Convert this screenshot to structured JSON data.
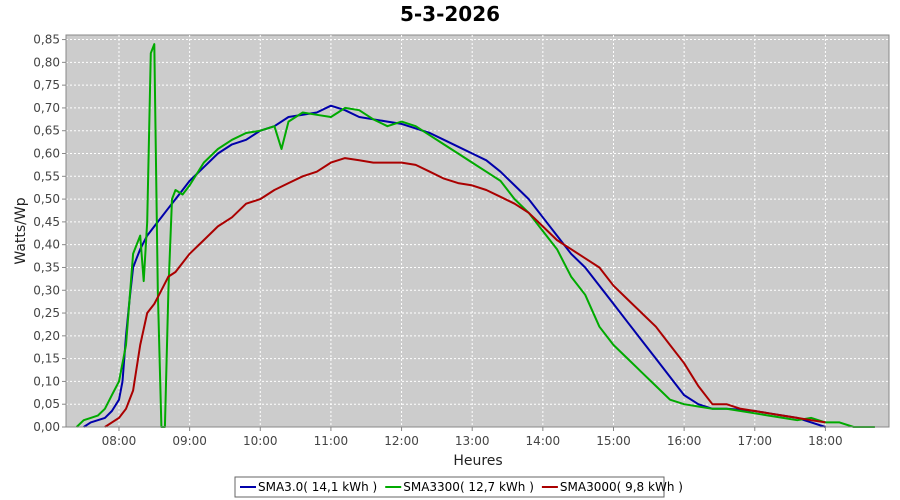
{
  "chart_data": {
    "type": "line",
    "title": "5-3-2026",
    "xlabel": "Heures",
    "ylabel": "Watts/Wp",
    "xlim": [
      7.25,
      18.9
    ],
    "ylim": [
      0,
      0.86
    ],
    "grid": true,
    "legend_position": "bottom",
    "x_ticks": [
      {
        "value": 8,
        "label": "08:00"
      },
      {
        "value": 9,
        "label": "09:00"
      },
      {
        "value": 10,
        "label": "10:00"
      },
      {
        "value": 11,
        "label": "11:00"
      },
      {
        "value": 12,
        "label": "12:00"
      },
      {
        "value": 13,
        "label": "13:00"
      },
      {
        "value": 14,
        "label": "14:00"
      },
      {
        "value": 15,
        "label": "15:00"
      },
      {
        "value": 16,
        "label": "16:00"
      },
      {
        "value": 17,
        "label": "17:00"
      },
      {
        "value": 18,
        "label": "18:00"
      }
    ],
    "y_ticks": [
      {
        "value": 0,
        "label": "0,00"
      },
      {
        "value": 0.05,
        "label": "0,05"
      },
      {
        "value": 0.1,
        "label": "0,10"
      },
      {
        "value": 0.15,
        "label": "0,15"
      },
      {
        "value": 0.2,
        "label": "0,20"
      },
      {
        "value": 0.25,
        "label": "0,25"
      },
      {
        "value": 0.3,
        "label": "0,30"
      },
      {
        "value": 0.35,
        "label": "0,35"
      },
      {
        "value": 0.4,
        "label": "0,40"
      },
      {
        "value": 0.45,
        "label": "0,45"
      },
      {
        "value": 0.5,
        "label": "0,50"
      },
      {
        "value": 0.55,
        "label": "0,55"
      },
      {
        "value": 0.6,
        "label": "0,60"
      },
      {
        "value": 0.65,
        "label": "0,65"
      },
      {
        "value": 0.7,
        "label": "0,70"
      },
      {
        "value": 0.75,
        "label": "0,75"
      },
      {
        "value": 0.8,
        "label": "0,80"
      },
      {
        "value": 0.85,
        "label": "0,85"
      }
    ],
    "series": [
      {
        "name": "SMA3.0( 14,1 kWh )",
        "color": "#0000aa",
        "x": [
          7.5,
          7.6,
          7.7,
          7.8,
          7.9,
          8.0,
          8.05,
          8.1,
          8.15,
          8.2,
          8.25,
          8.3,
          8.4,
          8.5,
          8.6,
          8.7,
          8.8,
          8.9,
          9.0,
          9.2,
          9.4,
          9.6,
          9.8,
          10.0,
          10.2,
          10.4,
          10.6,
          10.8,
          11.0,
          11.1,
          11.2,
          11.4,
          11.6,
          11.8,
          12.0,
          12.2,
          12.4,
          12.6,
          12.8,
          13.0,
          13.2,
          13.4,
          13.6,
          13.8,
          14.0,
          14.2,
          14.4,
          14.6,
          14.8,
          15.0,
          15.2,
          15.4,
          15.6,
          15.8,
          16.0,
          16.2,
          16.4,
          16.6,
          16.8,
          17.0,
          17.2,
          17.4,
          17.6,
          17.8,
          18.0
        ],
        "y": [
          0.0,
          0.01,
          0.015,
          0.02,
          0.035,
          0.06,
          0.1,
          0.2,
          0.28,
          0.35,
          0.37,
          0.39,
          0.42,
          0.44,
          0.46,
          0.48,
          0.5,
          0.52,
          0.54,
          0.57,
          0.6,
          0.62,
          0.63,
          0.65,
          0.66,
          0.68,
          0.685,
          0.69,
          0.705,
          0.7,
          0.695,
          0.68,
          0.675,
          0.67,
          0.665,
          0.655,
          0.645,
          0.63,
          0.615,
          0.6,
          0.585,
          0.56,
          0.53,
          0.5,
          0.46,
          0.42,
          0.38,
          0.35,
          0.31,
          0.27,
          0.23,
          0.19,
          0.15,
          0.11,
          0.07,
          0.05,
          0.04,
          0.04,
          0.038,
          0.035,
          0.03,
          0.025,
          0.02,
          0.01,
          0.0
        ]
      },
      {
        "name": "SMA3300( 12,7 kWh )",
        "color": "#00aa00",
        "x": [
          7.4,
          7.5,
          7.6,
          7.7,
          7.8,
          7.9,
          8.0,
          8.1,
          8.2,
          8.3,
          8.35,
          8.4,
          8.45,
          8.5,
          8.55,
          8.6,
          8.65,
          8.7,
          8.75,
          8.8,
          8.9,
          9.0,
          9.2,
          9.4,
          9.6,
          9.8,
          10.0,
          10.2,
          10.3,
          10.4,
          10.6,
          10.8,
          11.0,
          11.1,
          11.2,
          11.4,
          11.6,
          11.8,
          12.0,
          12.2,
          12.4,
          12.6,
          12.8,
          13.0,
          13.2,
          13.4,
          13.6,
          13.8,
          14.0,
          14.2,
          14.4,
          14.6,
          14.8,
          15.0,
          15.2,
          15.4,
          15.6,
          15.8,
          16.0,
          16.2,
          16.4,
          16.6,
          16.8,
          17.0,
          17.2,
          17.4,
          17.6,
          17.8,
          18.0,
          18.2,
          18.4,
          18.7
        ],
        "y": [
          0.0,
          0.015,
          0.02,
          0.025,
          0.04,
          0.07,
          0.1,
          0.18,
          0.38,
          0.42,
          0.32,
          0.45,
          0.82,
          0.84,
          0.3,
          0.0,
          0.0,
          0.3,
          0.5,
          0.52,
          0.51,
          0.53,
          0.58,
          0.61,
          0.63,
          0.645,
          0.65,
          0.66,
          0.61,
          0.67,
          0.69,
          0.685,
          0.68,
          0.69,
          0.7,
          0.695,
          0.675,
          0.66,
          0.67,
          0.66,
          0.64,
          0.62,
          0.6,
          0.58,
          0.56,
          0.54,
          0.5,
          0.47,
          0.43,
          0.39,
          0.33,
          0.29,
          0.22,
          0.18,
          0.15,
          0.12,
          0.09,
          0.06,
          0.05,
          0.045,
          0.04,
          0.04,
          0.035,
          0.03,
          0.025,
          0.02,
          0.015,
          0.02,
          0.01,
          0.01,
          0.0,
          0.0
        ]
      },
      {
        "name": "SMA3000( 9,8 kWh )",
        "color": "#aa0000",
        "x": [
          7.8,
          7.9,
          8.0,
          8.1,
          8.2,
          8.3,
          8.4,
          8.5,
          8.6,
          8.7,
          8.8,
          9.0,
          9.2,
          9.4,
          9.6,
          9.8,
          10.0,
          10.2,
          10.4,
          10.6,
          10.8,
          11.0,
          11.2,
          11.4,
          11.6,
          11.8,
          12.0,
          12.2,
          12.4,
          12.6,
          12.8,
          13.0,
          13.2,
          13.4,
          13.6,
          13.8,
          14.0,
          14.2,
          14.4,
          14.6,
          14.8,
          15.0,
          15.2,
          15.4,
          15.6,
          15.8,
          16.0,
          16.2,
          16.4,
          16.6,
          16.8,
          17.0,
          17.2,
          17.4,
          17.6,
          17.8,
          18.0
        ],
        "y": [
          0.0,
          0.01,
          0.02,
          0.04,
          0.08,
          0.18,
          0.25,
          0.27,
          0.3,
          0.33,
          0.34,
          0.38,
          0.41,
          0.44,
          0.46,
          0.49,
          0.5,
          0.52,
          0.535,
          0.55,
          0.56,
          0.58,
          0.59,
          0.585,
          0.58,
          0.58,
          0.58,
          0.575,
          0.56,
          0.545,
          0.535,
          0.53,
          0.52,
          0.505,
          0.49,
          0.47,
          0.44,
          0.41,
          0.39,
          0.37,
          0.35,
          0.31,
          0.28,
          0.25,
          0.22,
          0.18,
          0.14,
          0.09,
          0.05,
          0.05,
          0.04,
          0.035,
          0.03,
          0.025,
          0.02,
          0.015,
          0.01
        ]
      }
    ]
  }
}
